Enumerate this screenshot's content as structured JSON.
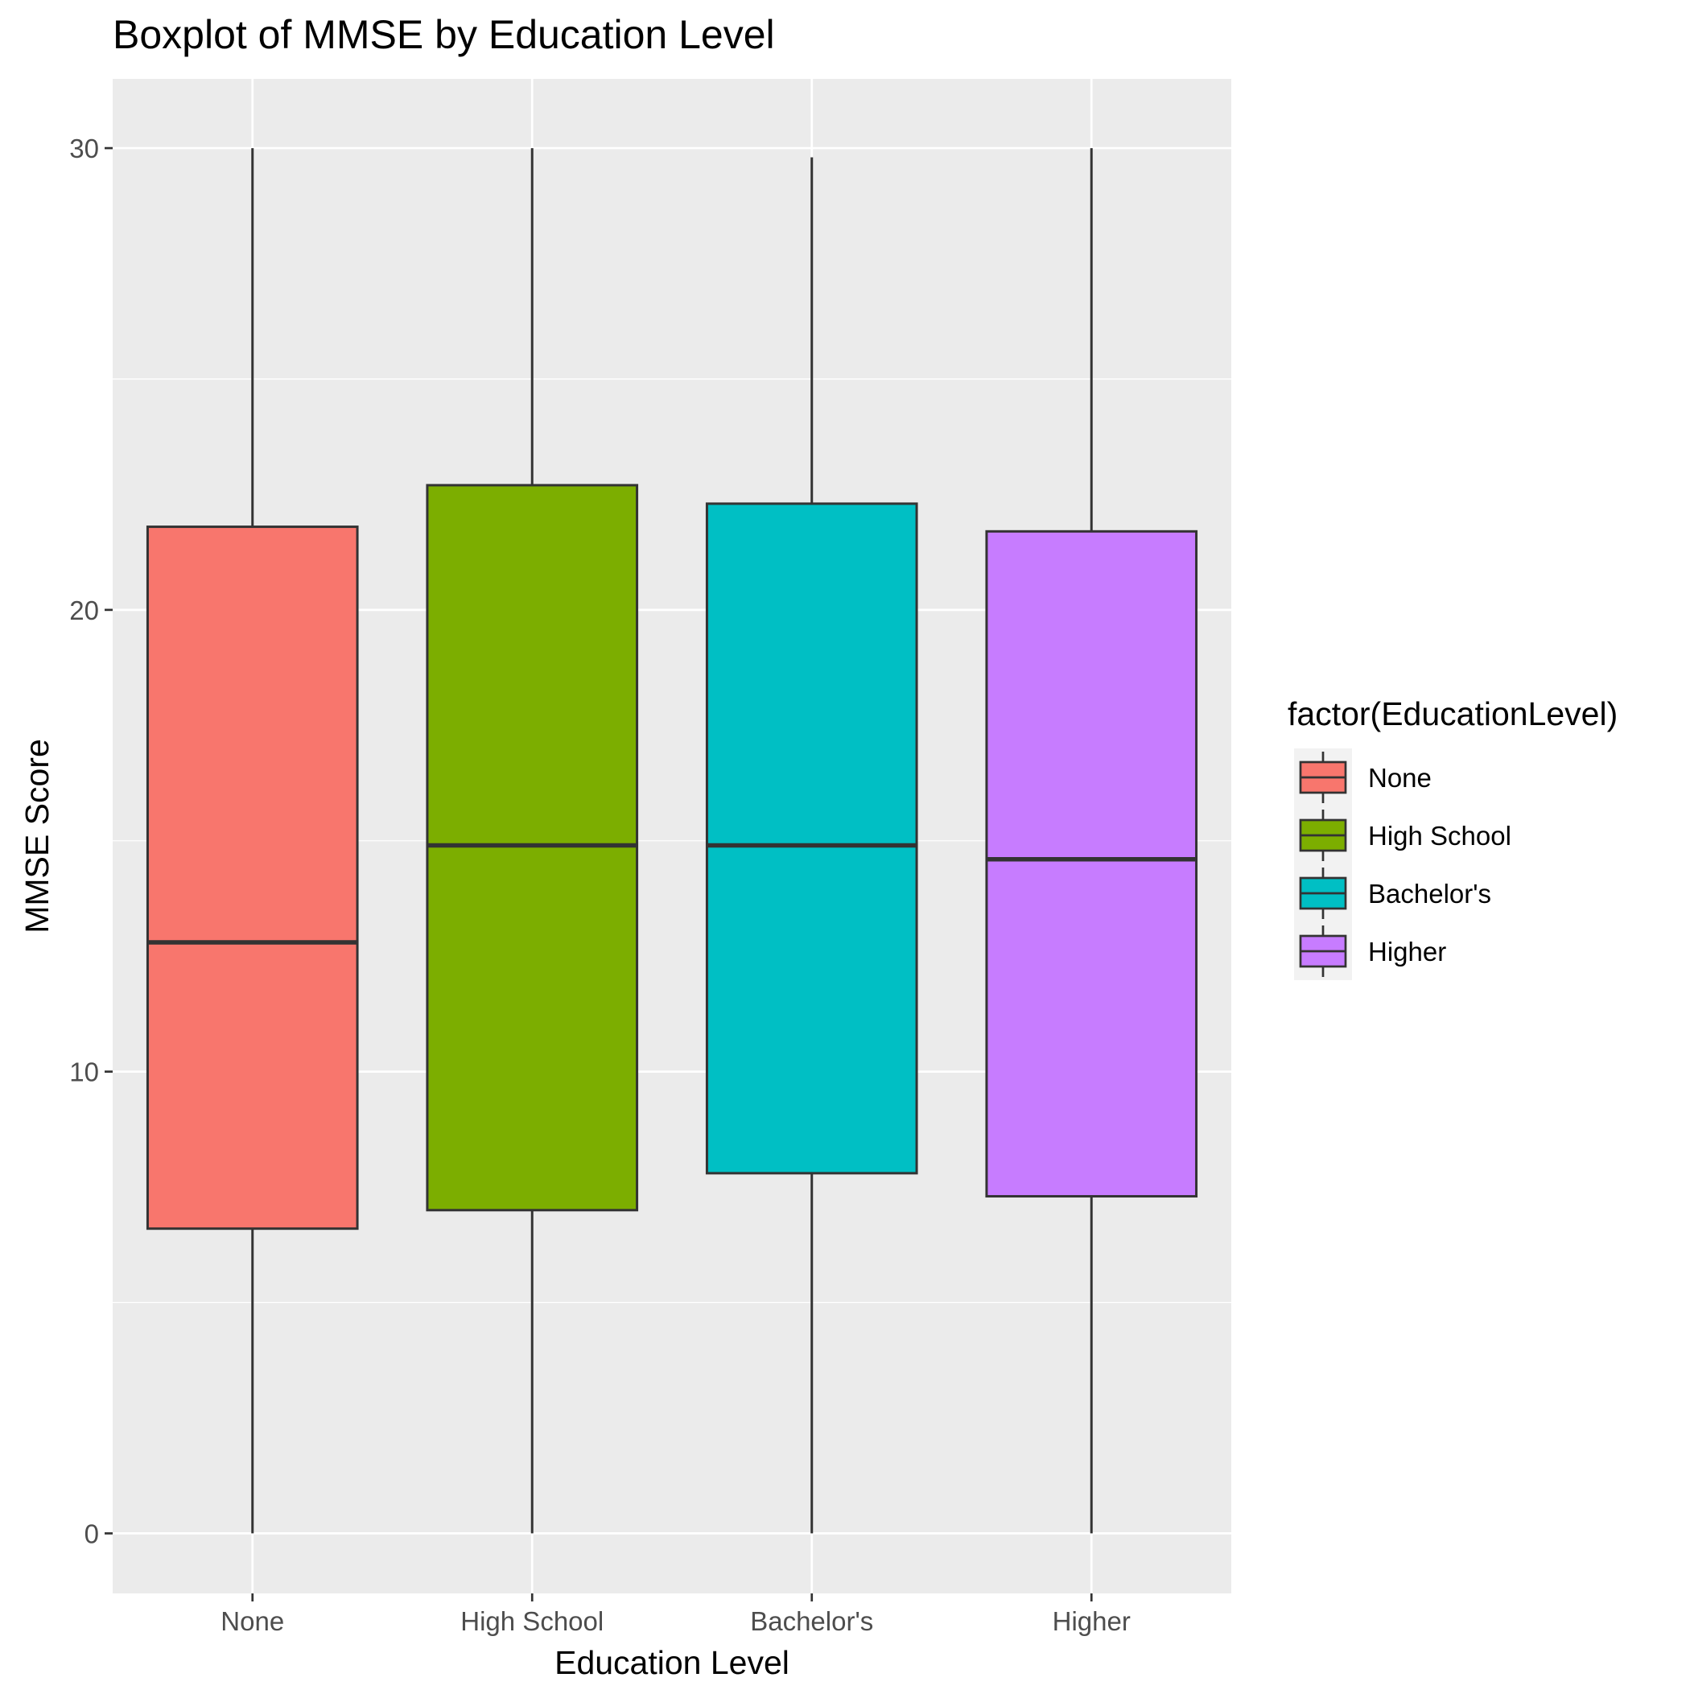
{
  "chart_data": {
    "type": "boxplot",
    "title": "Boxplot of MMSE by Education Level",
    "xlabel": "Education Level",
    "ylabel": "MMSE Score",
    "categories": [
      "None",
      "High School",
      "Bachelor's",
      "Higher"
    ],
    "ylim": [
      -1.3,
      31.5
    ],
    "yticks": [
      0,
      10,
      20,
      30
    ],
    "ytick_labels": [
      "0",
      "10",
      "20",
      "30"
    ],
    "grid": true,
    "boxes": [
      {
        "category": "None",
        "min": 0.0,
        "q1": 6.6,
        "median": 12.8,
        "q3": 21.8,
        "max": 30.0,
        "color": "#F8766D"
      },
      {
        "category": "High School",
        "min": 0.0,
        "q1": 7.0,
        "median": 14.9,
        "q3": 22.7,
        "max": 30.0,
        "color": "#7CAE00"
      },
      {
        "category": "Bachelor's",
        "min": 0.0,
        "q1": 7.8,
        "median": 14.9,
        "q3": 22.3,
        "max": 29.8,
        "color": "#00BFC4"
      },
      {
        "category": "Higher",
        "min": 0.0,
        "q1": 7.3,
        "median": 14.6,
        "q3": 21.7,
        "max": 30.0,
        "color": "#C77CFF"
      }
    ],
    "legend": {
      "title": "factor(EducationLevel)",
      "position": "right",
      "entries": [
        "None",
        "High School",
        "Bachelor's",
        "Higher"
      ]
    },
    "colors": {
      "panel_background": "#EBEBEB",
      "grid_line": "#FFFFFF",
      "box_outline": "#333333"
    }
  }
}
